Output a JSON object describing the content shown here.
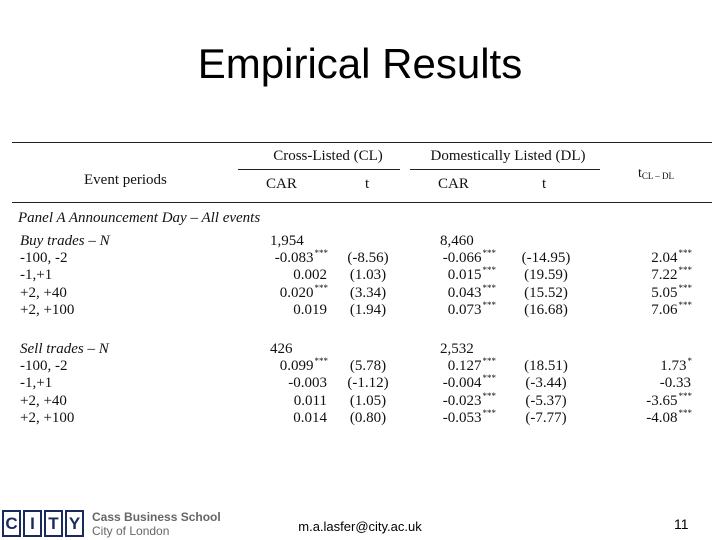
{
  "title": "Empirical Results",
  "table": {
    "header": {
      "event_periods": "Event periods",
      "cl": "Cross-Listed (CL)",
      "dl": "Domestically Listed (DL)",
      "car": "CAR",
      "t": "t",
      "tdiff": "t",
      "tdiff_sub": "CL – DL"
    },
    "panel_a": "Panel A Announcement Day – All events",
    "groups": [
      {
        "label": "Buy trades – N",
        "n_cl": "1,954",
        "n_dl": "8,460",
        "rows": [
          {
            "period": "-100, -2",
            "cl_car": "-0.083",
            "cl_car_sig": "***",
            "cl_t": "(-8.56)",
            "dl_car": "-0.066",
            "dl_car_sig": "***",
            "dl_t": "(-14.95)",
            "diff": "2.04",
            "diff_sig": "***"
          },
          {
            "period": "-1,+1",
            "cl_car": "0.002",
            "cl_car_sig": "",
            "cl_t": "(1.03)",
            "dl_car": "0.015",
            "dl_car_sig": "***",
            "dl_t": "(19.59)",
            "diff": "7.22",
            "diff_sig": "***"
          },
          {
            "period": "+2, +40",
            "cl_car": "0.020",
            "cl_car_sig": "***",
            "cl_t": "(3.34)",
            "dl_car": "0.043",
            "dl_car_sig": "***",
            "dl_t": "(15.52)",
            "diff": "5.05",
            "diff_sig": "***"
          },
          {
            "period": "+2, +100",
            "cl_car": "0.019",
            "cl_car_sig": "",
            "cl_t": "(1.94)",
            "dl_car": "0.073",
            "dl_car_sig": "***",
            "dl_t": "(16.68)",
            "diff": "7.06",
            "diff_sig": "***"
          }
        ]
      },
      {
        "label": "Sell trades – N",
        "n_cl": "426",
        "n_dl": "2,532",
        "rows": [
          {
            "period": "-100, -2",
            "cl_car": "0.099",
            "cl_car_sig": "***",
            "cl_t": "(5.78)",
            "dl_car": "0.127",
            "dl_car_sig": "***",
            "dl_t": "(18.51)",
            "diff": "1.73",
            "diff_sig": "*"
          },
          {
            "period": "-1,+1",
            "cl_car": "-0.003",
            "cl_car_sig": "",
            "cl_t": "(-1.12)",
            "dl_car": "-0.004",
            "dl_car_sig": "***",
            "dl_t": "(-3.44)",
            "diff": "-0.33",
            "diff_sig": ""
          },
          {
            "period": "+2, +40",
            "cl_car": "0.011",
            "cl_car_sig": "",
            "cl_t": "(1.05)",
            "dl_car": "-0.023",
            "dl_car_sig": "***",
            "dl_t": "(-5.37)",
            "diff": "-3.65",
            "diff_sig": "***"
          },
          {
            "period": "+2, +100",
            "cl_car": "0.014",
            "cl_car_sig": "",
            "cl_t": "(0.80)",
            "dl_car": "-0.053",
            "dl_car_sig": "***",
            "dl_t": "(-7.77)",
            "diff": "-4.08",
            "diff_sig": "***"
          }
        ]
      }
    ]
  },
  "footer": {
    "logo_letters": [
      "C",
      "I",
      "T",
      "Y"
    ],
    "school_line1": "Cass Business School",
    "school_line2": "City of London",
    "email": "m.a.lasfer@city.ac.uk",
    "page": "11"
  },
  "colors": {
    "logo": "#1b2a5c",
    "school_text": "#666666"
  }
}
